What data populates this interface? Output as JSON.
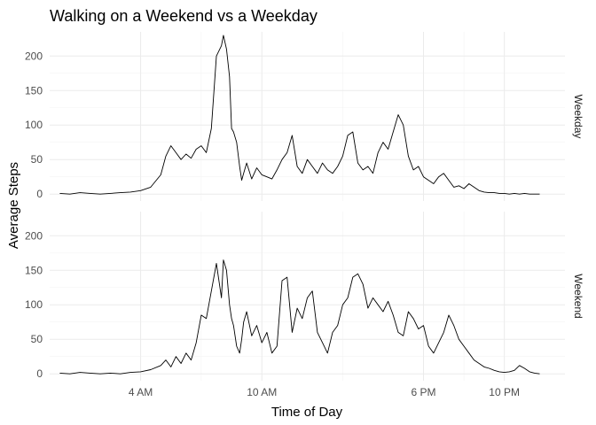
{
  "chart_data": {
    "type": "line",
    "title": "Walking on a Weekend vs a Weekday",
    "xlabel": "Time of Day",
    "ylabel": "Average Steps",
    "x_unit": "hours since midnight",
    "xlim": [
      -0.5,
      25.0
    ],
    "ylim": [
      -10,
      235
    ],
    "x_ticks": [
      {
        "value": 4,
        "label": "4 AM"
      },
      {
        "value": 10,
        "label": "10 AM"
      },
      {
        "value": 18,
        "label": "6 PM"
      },
      {
        "value": 22,
        "label": "10 PM"
      }
    ],
    "y_ticks": [
      0,
      50,
      100,
      150,
      200
    ],
    "grid": true,
    "legend": "none",
    "panels": [
      {
        "name": "Weekday",
        "x": [
          0,
          0.5,
          1,
          1.5,
          2,
          2.5,
          3,
          3.5,
          4,
          4.5,
          5,
          5.25,
          5.5,
          5.75,
          6,
          6.25,
          6.5,
          6.75,
          7,
          7.25,
          7.5,
          7.75,
          8,
          8.1,
          8.25,
          8.4,
          8.5,
          8.6,
          8.75,
          8.9,
          9,
          9.1,
          9.25,
          9.5,
          9.75,
          10,
          10.25,
          10.5,
          10.75,
          11,
          11.25,
          11.5,
          11.75,
          12,
          12.25,
          12.5,
          12.75,
          13,
          13.25,
          13.5,
          13.75,
          14,
          14.25,
          14.5,
          14.75,
          15,
          15.25,
          15.5,
          15.75,
          16,
          16.25,
          16.5,
          16.75,
          17,
          17.25,
          17.5,
          17.75,
          18,
          18.25,
          18.5,
          18.75,
          19,
          19.25,
          19.5,
          19.75,
          20,
          20.25,
          20.5,
          20.75,
          21,
          21.25,
          21.5,
          21.75,
          22,
          22.25,
          22.5,
          22.75,
          23,
          23.25,
          23.5,
          23.75
        ],
        "values": [
          1,
          0,
          2,
          1,
          0,
          1,
          2,
          3,
          5,
          10,
          28,
          55,
          70,
          60,
          50,
          58,
          52,
          65,
          70,
          60,
          95,
          200,
          215,
          230,
          210,
          170,
          95,
          90,
          75,
          40,
          20,
          30,
          45,
          22,
          38,
          28,
          25,
          22,
          35,
          50,
          60,
          85,
          40,
          30,
          50,
          40,
          30,
          45,
          35,
          30,
          40,
          55,
          85,
          90,
          45,
          35,
          40,
          30,
          60,
          75,
          65,
          90,
          115,
          100,
          55,
          35,
          40,
          25,
          20,
          15,
          25,
          30,
          20,
          10,
          12,
          8,
          15,
          10,
          5,
          3,
          2,
          2,
          1,
          1,
          0,
          1,
          0,
          1,
          0,
          0,
          0
        ],
        "_note_values_count": "values align with x"
      },
      {
        "name": "Weekend",
        "x": [
          0,
          0.5,
          1,
          1.5,
          2,
          2.5,
          3,
          3.5,
          4,
          4.5,
          5,
          5.25,
          5.5,
          5.75,
          6,
          6.25,
          6.5,
          6.75,
          7,
          7.25,
          7.5,
          7.75,
          8,
          8.1,
          8.25,
          8.4,
          8.5,
          8.6,
          8.75,
          8.9,
          9,
          9.1,
          9.25,
          9.5,
          9.75,
          10,
          10.25,
          10.5,
          10.75,
          11,
          11.25,
          11.5,
          11.75,
          12,
          12.25,
          12.5,
          12.75,
          13,
          13.25,
          13.5,
          13.75,
          14,
          14.25,
          14.5,
          14.75,
          15,
          15.25,
          15.5,
          15.75,
          16,
          16.25,
          16.5,
          16.75,
          17,
          17.25,
          17.5,
          17.75,
          18,
          18.25,
          18.5,
          18.75,
          19,
          19.25,
          19.5,
          19.75,
          20,
          20.25,
          20.5,
          20.75,
          21,
          21.25,
          21.5,
          21.75,
          22,
          22.25,
          22.5,
          22.75,
          23,
          23.25,
          23.5,
          23.75
        ],
        "values": [
          1,
          0,
          2,
          1,
          0,
          1,
          0,
          2,
          3,
          6,
          12,
          20,
          10,
          25,
          15,
          30,
          20,
          45,
          85,
          80,
          120,
          160,
          110,
          165,
          150,
          100,
          80,
          70,
          40,
          30,
          50,
          75,
          90,
          55,
          70,
          45,
          60,
          30,
          40,
          135,
          140,
          60,
          95,
          80,
          110,
          120,
          60,
          45,
          30,
          60,
          70,
          100,
          110,
          140,
          145,
          130,
          95,
          110,
          100,
          90,
          105,
          85,
          60,
          55,
          90,
          80,
          65,
          70,
          40,
          30,
          45,
          60,
          85,
          70,
          50,
          40,
          30,
          20,
          15,
          10,
          8,
          5,
          3,
          2,
          3,
          5,
          12,
          8,
          3,
          1,
          0
        ],
        "_note_values_count": "values align with x"
      }
    ]
  }
}
